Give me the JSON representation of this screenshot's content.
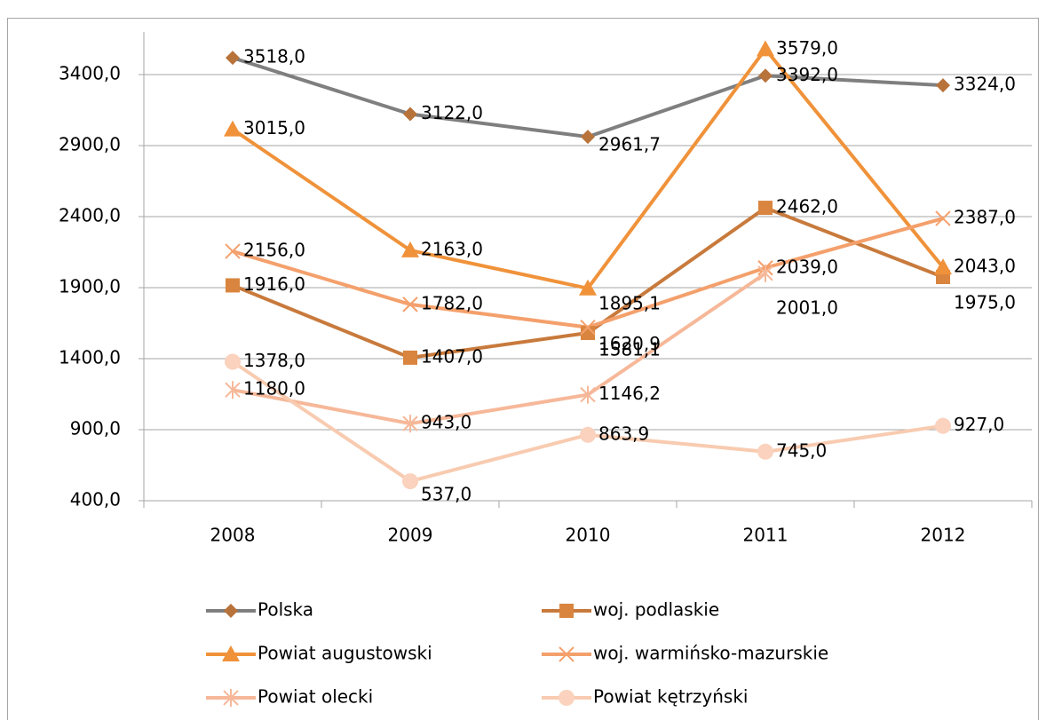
{
  "chart_data": {
    "type": "line",
    "categories": [
      "2008",
      "2009",
      "2010",
      "2011",
      "2012"
    ],
    "ylim": [
      400,
      3700
    ],
    "yticks": [
      {
        "value": 400,
        "label": "400,0"
      },
      {
        "value": 900,
        "label": "900,0"
      },
      {
        "value": 1400,
        "label": "1400,0"
      },
      {
        "value": 1900,
        "label": "1900,0"
      },
      {
        "value": 2400,
        "label": "2400,0"
      },
      {
        "value": 2900,
        "label": "2900,0"
      },
      {
        "value": 3400,
        "label": "3400,0"
      }
    ],
    "grid": true,
    "legend": "bottom",
    "series": [
      {
        "name": "Polska",
        "color": "#7f7f7f",
        "marker": "diamond",
        "marker_color": "#b8733b",
        "values": [
          3518,
          3122,
          2961.7,
          3392,
          3324
        ],
        "value_labels": [
          "3518,0",
          "3122,0",
          "2961,7",
          "3392,0",
          "3324,0"
        ]
      },
      {
        "name": "woj. podlaskie",
        "color": "#c87a3c",
        "marker": "square",
        "marker_color": "#d9853f",
        "values": [
          1916,
          1407,
          1581.1,
          2462,
          1975
        ],
        "value_labels": [
          "1916,0",
          "1407,0",
          "1581,1",
          "2462,0",
          "1975,0"
        ]
      },
      {
        "name": "Powiat augustowski",
        "color": "#f0923a",
        "marker": "triangle",
        "marker_color": "#f0923a",
        "values": [
          3015,
          2163,
          1895.1,
          3579,
          2043
        ],
        "value_labels": [
          "3015,0",
          "2163,0",
          "1895,1",
          "3579,0",
          "2043,0"
        ]
      },
      {
        "name": "woj. warmińsko-mazurskie",
        "color": "#f4a06c",
        "marker": "x",
        "marker_color": "#f4a06c",
        "values": [
          2156,
          1782,
          1620.9,
          2039,
          2387
        ],
        "value_labels": [
          "2156,0",
          "1782,0",
          "1620,9",
          "2039,0",
          "2387,0"
        ]
      },
      {
        "name": "Powiat olecki",
        "color": "#f6b899",
        "marker": "star",
        "marker_color": "#f6b899",
        "values": [
          1180,
          943,
          1146.2,
          2001,
          null
        ],
        "value_labels": [
          "1180,0",
          "943,0",
          "1146,2",
          "2001,0",
          null
        ]
      },
      {
        "name": "Powiat kętrzyński",
        "color": "#f8cbb0",
        "marker": "circle",
        "marker_color": "#fad2bd",
        "values": [
          1378,
          537,
          863.9,
          745,
          927
        ],
        "value_labels": [
          "1378,0",
          "537,0",
          "863,9",
          "745,0",
          "927,0"
        ]
      }
    ]
  }
}
